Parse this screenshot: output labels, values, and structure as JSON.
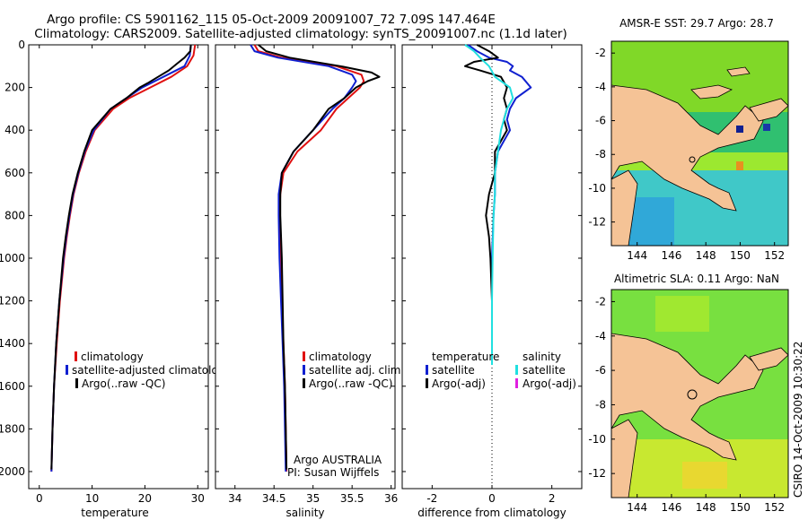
{
  "header": {
    "title_line1": "Argo profile: CS 5901162_115 05-Oct-2009 20091007_72 7.09S 147.464E",
    "title_line2": "Climatology: CARS2009. Satellite-adjusted climatology: synTS_20091007.nc (1.1d later)"
  },
  "footer": {
    "stamp": "CSIRO 14-Oct-2009 10:30:22"
  },
  "colors": {
    "climatology": "#e01010",
    "satellite": "#1020d0",
    "argo": "#000000",
    "salinity_satellite": "#20e0e0",
    "salinity_argo_adj": "#e020e0",
    "land": "#f5c396"
  },
  "chart_data": [
    {
      "type": "line",
      "id": "temperature",
      "xlabel": "temperature",
      "xlim": [
        -2,
        32
      ],
      "ylim": [
        2080,
        0
      ],
      "xticks": [
        0,
        10,
        20,
        30
      ],
      "xtick_labels": [
        "0",
        "10",
        "20",
        "30"
      ],
      "yticks": [
        0,
        200,
        400,
        600,
        800,
        1000,
        1200,
        1400,
        1600,
        1800,
        2000
      ],
      "ytick_labels": [
        "0",
        "200",
        "400",
        "600",
        "800",
        "1000",
        "1200",
        "1400",
        "1600",
        "1800",
        "2000"
      ],
      "legend": [
        "climatology",
        "satellite-adjusted climatology",
        "Argo(..raw -QC)"
      ],
      "legend_colors": [
        "#e01010",
        "#1020d0",
        "#000000"
      ],
      "series": [
        {
          "name": "climatology",
          "color": "#e01010",
          "depth": [
            0,
            50,
            100,
            150,
            200,
            250,
            300,
            400,
            500,
            600,
            700,
            800,
            900,
            1000,
            1200,
            1400,
            1600,
            1800,
            2000
          ],
          "values": [
            29.5,
            29.2,
            28.0,
            25.0,
            21.0,
            17.0,
            14.0,
            10.5,
            8.8,
            7.5,
            6.5,
            5.8,
            5.2,
            4.7,
            3.9,
            3.3,
            2.8,
            2.5,
            2.3
          ]
        },
        {
          "name": "satellite-adjusted climatology",
          "color": "#1020d0",
          "depth": [
            0,
            50,
            100,
            150,
            200,
            250,
            300,
            400,
            500,
            600,
            700,
            800,
            900,
            1000,
            1200,
            1400,
            1600,
            1800,
            2000
          ],
          "values": [
            28.7,
            28.5,
            27.5,
            23.5,
            19.5,
            16.5,
            13.5,
            10.3,
            8.6,
            7.4,
            6.4,
            5.7,
            5.1,
            4.6,
            3.8,
            3.2,
            2.8,
            2.5,
            2.3
          ]
        },
        {
          "name": "Argo(..raw -QC)",
          "color": "#000000",
          "depth": [
            0,
            30,
            60,
            90,
            120,
            150,
            180,
            200,
            250,
            300,
            400,
            500,
            600,
            700,
            800,
            900,
            1000,
            1200,
            1400,
            1600,
            1800,
            1990
          ],
          "values": [
            28.7,
            28.6,
            27.5,
            26.0,
            24.5,
            22.5,
            20.5,
            19.0,
            16.5,
            13.5,
            10.0,
            8.5,
            7.3,
            6.3,
            5.6,
            5.0,
            4.5,
            3.8,
            3.2,
            2.8,
            2.5,
            2.3
          ]
        }
      ]
    },
    {
      "type": "line",
      "id": "salinity",
      "xlabel": "salinity",
      "xlim": [
        33.75,
        36.05
      ],
      "ylim": [
        2080,
        0
      ],
      "xticks": [
        34,
        34.5,
        35,
        35.5,
        36
      ],
      "xtick_labels": [
        "34",
        "34.5",
        "35",
        "35.5",
        "36"
      ],
      "legend": [
        "climatology",
        "satellite adj. clim.",
        "Argo(..raw -QC)"
      ],
      "legend_colors": [
        "#e01010",
        "#1020d0",
        "#000000"
      ],
      "annotation_line1": "Argo AUSTRALIA",
      "annotation_line2": "PI: Susan Wijffels",
      "series": [
        {
          "name": "climatology",
          "color": "#e01010",
          "depth": [
            0,
            30,
            60,
            100,
            140,
            170,
            200,
            250,
            300,
            400,
            500,
            600,
            700,
            800,
            1000,
            1200,
            1400,
            1600,
            1800,
            2000
          ],
          "values": [
            34.25,
            34.3,
            34.6,
            35.3,
            35.62,
            35.65,
            35.6,
            35.45,
            35.3,
            35.1,
            34.8,
            34.62,
            34.58,
            34.57,
            34.58,
            34.6,
            34.62,
            34.64,
            34.65,
            34.66
          ]
        },
        {
          "name": "satellite adj. clim.",
          "color": "#1020d0",
          "depth": [
            0,
            30,
            60,
            100,
            140,
            170,
            200,
            250,
            300,
            400,
            500,
            600,
            700,
            800,
            1000,
            1200,
            1400,
            1600,
            1800,
            2000
          ],
          "values": [
            34.2,
            34.25,
            34.55,
            35.2,
            35.5,
            35.55,
            35.5,
            35.4,
            35.25,
            35.0,
            34.75,
            34.6,
            34.56,
            34.56,
            34.57,
            34.59,
            34.61,
            34.63,
            34.64,
            34.65
          ]
        },
        {
          "name": "Argo(..raw -QC)",
          "color": "#000000",
          "depth": [
            0,
            30,
            60,
            100,
            130,
            150,
            170,
            200,
            250,
            300,
            400,
            500,
            600,
            700,
            800,
            1000,
            1200,
            1400,
            1600,
            1800,
            1990
          ],
          "values": [
            34.3,
            34.4,
            34.7,
            35.35,
            35.75,
            35.85,
            35.7,
            35.55,
            35.4,
            35.2,
            35.0,
            34.75,
            34.6,
            34.58,
            34.58,
            34.6,
            34.61,
            34.62,
            34.64,
            34.65,
            34.66
          ]
        }
      ]
    },
    {
      "type": "line",
      "id": "difference",
      "xlabel": "difference from climatology",
      "xlim": [
        -3,
        3
      ],
      "ylim": [
        2080,
        0
      ],
      "xticks": [
        -2,
        0,
        2
      ],
      "xtick_labels": [
        "-2",
        "0",
        "2"
      ],
      "legend_left_title": "temperature",
      "legend_left": [
        "satellite",
        "Argo(-adj)"
      ],
      "legend_left_colors": [
        "#1020d0",
        "#000000"
      ],
      "legend_right_title": "salinity",
      "legend_right": [
        "satellite",
        "Argo(-adj)"
      ],
      "legend_right_colors": [
        "#20e0e0",
        "#e020e0"
      ],
      "series": [
        {
          "name": "temperature satellite",
          "color": "#1020d0",
          "depth": [
            0,
            30,
            60,
            80,
            100,
            120,
            150,
            200,
            250,
            300,
            350,
            400,
            450,
            500,
            600,
            700,
            800,
            1000,
            1200,
            1400,
            1500
          ],
          "values": [
            -0.8,
            -0.5,
            -0.1,
            0.5,
            0.7,
            0.6,
            1.0,
            1.3,
            0.8,
            0.6,
            0.5,
            0.6,
            0.4,
            0.2,
            0.1,
            0.1,
            0.05,
            0.0,
            0.0,
            0.0,
            0.0
          ]
        },
        {
          "name": "temperature Argo(-adj)",
          "color": "#000000",
          "depth": [
            0,
            30,
            60,
            80,
            100,
            120,
            150,
            200,
            250,
            300,
            350,
            400,
            450,
            500,
            600,
            700,
            800,
            900,
            1000,
            1200,
            1400,
            1500
          ],
          "values": [
            -0.5,
            -0.1,
            0.2,
            -0.6,
            -0.9,
            -0.4,
            0.3,
            0.5,
            0.4,
            0.5,
            0.4,
            0.5,
            0.3,
            0.1,
            0.1,
            -0.1,
            -0.2,
            -0.1,
            -0.05,
            0.0,
            0.0,
            0.0
          ]
        },
        {
          "name": "salinity satellite",
          "color": "#20e0e0",
          "depth": [
            0,
            30,
            60,
            100,
            150,
            200,
            250,
            300,
            400,
            500,
            600,
            700,
            800,
            1000,
            1200,
            1400,
            1500
          ],
          "values": [
            -0.9,
            -0.6,
            -0.4,
            -0.1,
            0.1,
            0.6,
            0.7,
            0.5,
            0.3,
            0.2,
            0.1,
            0.1,
            0.05,
            0.02,
            0.0,
            0.0,
            0.0
          ]
        }
      ]
    },
    {
      "type": "heatmap",
      "id": "sst_map",
      "title": "AMSR-E SST: 29.7 Argo: 28.7",
      "xticks": [
        144,
        146,
        148,
        150,
        152
      ],
      "xtick_labels": [
        "144",
        "146",
        "148",
        "150",
        "152"
      ],
      "yticks": [
        -2,
        -4,
        -6,
        -8,
        -10,
        -12
      ],
      "ytick_labels": [
        "-2",
        "-4",
        "-6",
        "-8",
        "-10",
        "-12"
      ],
      "lon_range": [
        142.5,
        152.8
      ],
      "lat_range": [
        -13.4,
        -1.3
      ],
      "argo_position": [
        147.464,
        -7.09
      ]
    },
    {
      "type": "heatmap",
      "id": "sla_map",
      "title": "Altimetric SLA: 0.11 Argo: NaN",
      "xticks": [
        144,
        146,
        148,
        150,
        152
      ],
      "xtick_labels": [
        "144",
        "146",
        "148",
        "150",
        "152"
      ],
      "yticks": [
        -2,
        -4,
        -6,
        -8,
        -10,
        -12
      ],
      "ytick_labels": [
        "-2",
        "-4",
        "-6",
        "-8",
        "-10",
        "-12"
      ],
      "lon_range": [
        142.5,
        152.8
      ],
      "lat_range": [
        -13.4,
        -1.3
      ],
      "argo_position": [
        147.464,
        -7.09
      ]
    }
  ]
}
